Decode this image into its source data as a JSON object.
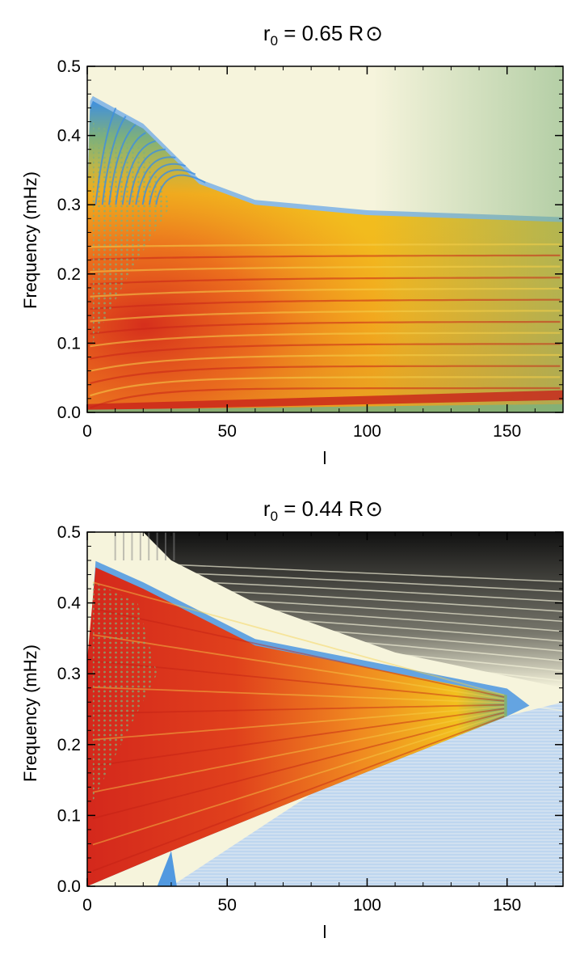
{
  "chart_data": [
    {
      "type": "heatmap",
      "title_main": "r",
      "title_subscript": "0",
      "title_rest": " = 0.65 R",
      "title_symbol": "⊙",
      "xlabel": "l",
      "ylabel": "Frequency (mHz)",
      "xlim": [
        0,
        170
      ],
      "ylim": [
        0,
        0.5
      ],
      "x_ticks": [
        "0",
        "50",
        "100",
        "150"
      ],
      "y_ticks": [
        "0.0",
        "0.1",
        "0.2",
        "0.3",
        "0.4",
        "0.5"
      ],
      "colors": {
        "background": "#f6f4dc",
        "blue": "#3f8fe0",
        "green": "#7fb07a",
        "yellow": "#f2c01e",
        "orange": "#f08a20",
        "red": "#d4281c"
      },
      "regions": [
        {
          "name": "envelope upper edge",
          "x": [
            2,
            20,
            40,
            60,
            100,
            170
          ],
          "y": [
            0.45,
            0.41,
            0.33,
            0.3,
            0.285,
            0.275
          ]
        },
        {
          "name": "intense red core",
          "x": [
            5,
            30,
            70
          ],
          "y": [
            0.02,
            0.12,
            0.2
          ]
        },
        {
          "name": "low-frequency red band",
          "x": [
            0,
            170
          ],
          "y": [
            0.005,
            0.02
          ]
        }
      ]
    },
    {
      "type": "heatmap",
      "title_main": "r",
      "title_subscript": "0",
      "title_rest": " = 0.44 R",
      "title_symbol": "⊙",
      "xlabel": "l",
      "ylabel": "Frequency (mHz)",
      "xlim": [
        0,
        170
      ],
      "ylim": [
        0,
        0.5
      ],
      "x_ticks": [
        "0",
        "50",
        "100",
        "150"
      ],
      "y_ticks": [
        "0.0",
        "0.1",
        "0.2",
        "0.3",
        "0.4",
        "0.5"
      ],
      "colors": {
        "background": "#f6f4dc",
        "black": "#111111",
        "blue": "#3f8fe0",
        "green": "#7fb07a",
        "yellow": "#f2c01e",
        "orange": "#f08a20",
        "red": "#d4281c"
      },
      "regions": [
        {
          "name": "colored wedge lower edge",
          "x": [
            0,
            30,
            80,
            150
          ],
          "y": [
            0.0,
            0.05,
            0.13,
            0.24
          ]
        },
        {
          "name": "colored wedge upper edge",
          "x": [
            3,
            20,
            60,
            150
          ],
          "y": [
            0.45,
            0.42,
            0.34,
            0.27
          ]
        },
        {
          "name": "black high-frequency region",
          "x": [
            40,
            170
          ],
          "y": [
            0.33,
            0.5
          ]
        },
        {
          "name": "faint blue low region",
          "x": [
            60,
            170
          ],
          "y": [
            0.0,
            0.2
          ]
        }
      ]
    }
  ]
}
